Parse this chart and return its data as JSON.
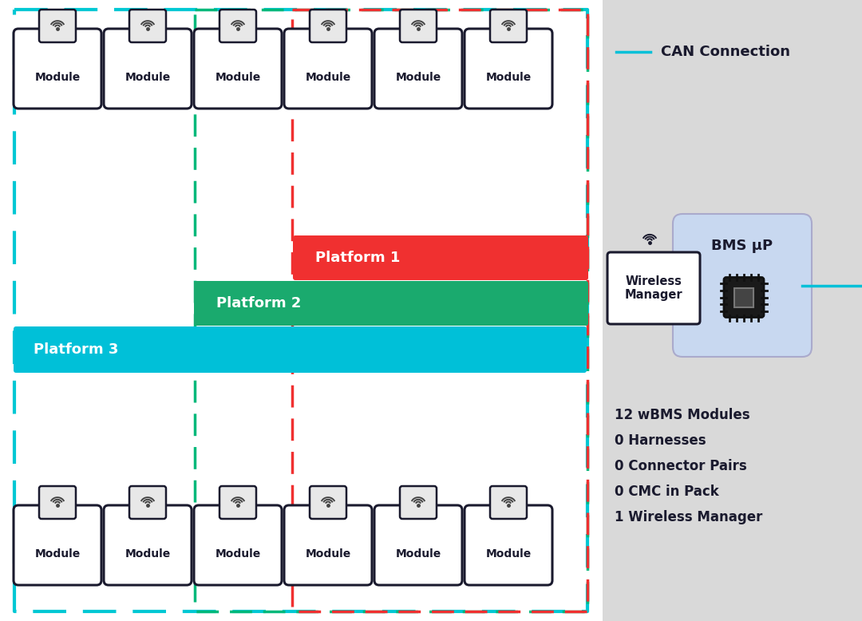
{
  "bg_color": "#ffffff",
  "main_area_bg": "#ffffff",
  "sidebar_bg": "#d9d9d9",
  "cyan_border": "#00c8d4",
  "green_border": "#00b87a",
  "red_border": "#f03030",
  "platform1_color": "#f03030",
  "platform2_color": "#1aaa6e",
  "platform3_color": "#00c0d8",
  "module_bg": "#ffffff",
  "module_border": "#1a1a2e",
  "wifi_color": "#444444",
  "can_line_color": "#00c0d8",
  "bms_box_bg": "#c8d8f0",
  "wireless_box_bg": "#ffffff",
  "text_color": "#1a1a2e",
  "platform1_text": "Platform 1",
  "platform2_text": "Platform 2",
  "platform3_text": "Platform 3",
  "module_text": "Module",
  "can_label": "CAN Connection",
  "bms_label": "BMS μP",
  "wireless_label": "Wireless\nManager",
  "stats_lines": [
    "12 wBMS Modules",
    "0 Harnesses",
    "0 Connector Pairs",
    "0 CMC in Pack",
    "1 Wireless Manager"
  ]
}
